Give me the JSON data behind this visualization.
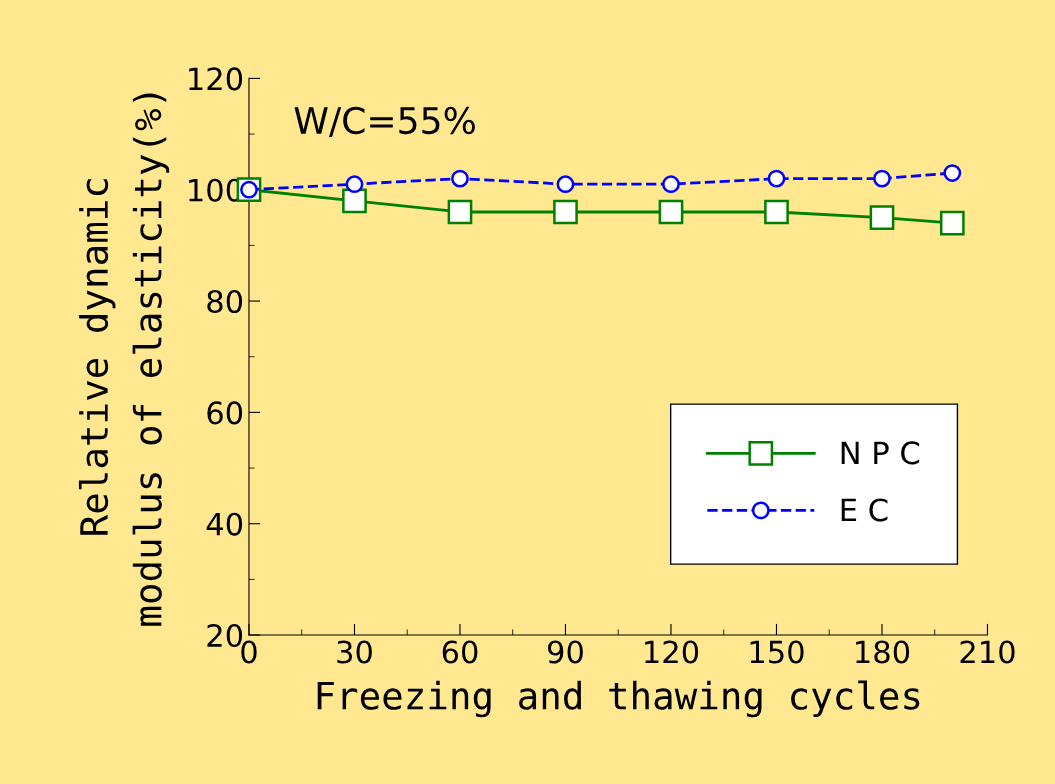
{
  "chart_data": {
    "type": "line",
    "xlabel": "Freezing and thawing cycles",
    "ylabel": "Relative dynamic\nmodulus of elasticity(%)",
    "annotations": [
      "W/C=55%"
    ],
    "x": [
      0,
      30,
      60,
      90,
      120,
      150,
      180,
      200
    ],
    "series": [
      {
        "name": "N P C",
        "color": "#008000",
        "values": [
          100,
          98,
          96,
          96,
          96,
          96,
          95,
          94
        ],
        "marker": "square",
        "line_style": "solid"
      },
      {
        "name": "E C",
        "color": "#0000ff",
        "values": [
          100,
          101,
          102,
          101,
          101,
          102,
          102,
          103
        ],
        "marker": "circle",
        "line_style": "dashed"
      }
    ],
    "xlim": [
      0,
      210
    ],
    "xticks": [
      0,
      30,
      60,
      90,
      120,
      150,
      180,
      210
    ],
    "ylim": [
      20,
      120
    ],
    "yticks": [
      20,
      40,
      60,
      80,
      100,
      120
    ],
    "grid": false,
    "legend": "bottom right"
  }
}
